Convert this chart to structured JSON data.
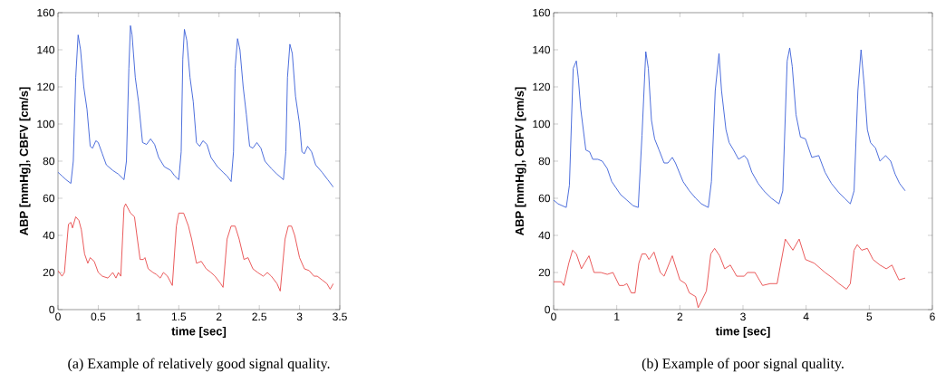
{
  "chart_data": [
    {
      "type": "line",
      "xlabel": "time [sec]",
      "ylabel": "ABP [mmHg], CBFV [cm/s]",
      "annotations": [
        "(a) Example of relatively good signal quality."
      ],
      "xlim": [
        0,
        3.5
      ],
      "ylim": [
        0,
        160
      ],
      "xticks": [
        0,
        0.5,
        1,
        1.5,
        2,
        2.5,
        3,
        3.5
      ],
      "yticks": [
        0,
        20,
        40,
        60,
        80,
        100,
        120,
        140,
        160
      ],
      "series": [
        {
          "color": "#3a5fd8",
          "x": [
            0,
            0.05,
            0.1,
            0.16,
            0.19,
            0.22,
            0.25,
            0.28,
            0.32,
            0.36,
            0.4,
            0.43,
            0.47,
            0.5,
            0.55,
            0.6,
            0.68,
            0.75,
            0.82,
            0.85,
            0.88,
            0.9,
            0.92,
            0.96,
            1.0,
            1.05,
            1.1,
            1.15,
            1.2,
            1.25,
            1.32,
            1.4,
            1.45,
            1.5,
            1.53,
            1.55,
            1.57,
            1.6,
            1.64,
            1.68,
            1.72,
            1.76,
            1.8,
            1.85,
            1.9,
            1.98,
            2.05,
            2.1,
            2.15,
            2.18,
            2.2,
            2.23,
            2.26,
            2.3,
            2.34,
            2.38,
            2.42,
            2.47,
            2.52,
            2.57,
            2.65,
            2.72,
            2.8,
            2.83,
            2.85,
            2.88,
            2.91,
            2.95,
            3.0,
            3.03,
            3.06,
            3.1,
            3.15,
            3.2,
            3.28,
            3.35,
            3.42
          ],
          "values": [
            74,
            72,
            70,
            68,
            80,
            125,
            148,
            140,
            120,
            108,
            88,
            87,
            91,
            90,
            84,
            78,
            75,
            73,
            70,
            80,
            130,
            153,
            148,
            125,
            112,
            90,
            89,
            92,
            89,
            82,
            77,
            75,
            72,
            70,
            85,
            135,
            151,
            145,
            125,
            112,
            90,
            88,
            91,
            89,
            82,
            77,
            74,
            72,
            69,
            85,
            130,
            146,
            140,
            120,
            105,
            88,
            87,
            90,
            87,
            80,
            76,
            73,
            70,
            85,
            125,
            143,
            138,
            115,
            100,
            85,
            84,
            88,
            85,
            78,
            74,
            70,
            66
          ]
        },
        {
          "color": "#e8484a",
          "x": [
            0,
            0.05,
            0.08,
            0.13,
            0.16,
            0.18,
            0.22,
            0.26,
            0.29,
            0.33,
            0.37,
            0.4,
            0.45,
            0.5,
            0.55,
            0.62,
            0.68,
            0.72,
            0.75,
            0.78,
            0.82,
            0.84,
            0.9,
            0.95,
            0.98,
            1.02,
            1.06,
            1.08,
            1.12,
            1.18,
            1.22,
            1.27,
            1.31,
            1.36,
            1.42,
            1.47,
            1.5,
            1.56,
            1.62,
            1.66,
            1.72,
            1.78,
            1.84,
            1.9,
            1.95,
            2.02,
            2.05,
            2.1,
            2.15,
            2.2,
            2.25,
            2.31,
            2.36,
            2.42,
            2.48,
            2.55,
            2.6,
            2.65,
            2.72,
            2.76,
            2.82,
            2.86,
            2.9,
            2.94,
            3.0,
            3.06,
            3.12,
            3.18,
            3.22,
            3.28,
            3.34,
            3.38,
            3.42
          ],
          "values": [
            21,
            18,
            20,
            46,
            47,
            44,
            50,
            48,
            43,
            30,
            25,
            28,
            26,
            20,
            18,
            17,
            20,
            17,
            20,
            18,
            55,
            57,
            52,
            50,
            40,
            27,
            27,
            28,
            22,
            20,
            19,
            17,
            20,
            18,
            13,
            45,
            52,
            52,
            45,
            38,
            25,
            26,
            22,
            20,
            18,
            14,
            12,
            38,
            45,
            45,
            38,
            27,
            28,
            22,
            20,
            18,
            20,
            18,
            14,
            10,
            38,
            45,
            45,
            40,
            28,
            22,
            21,
            18,
            18,
            16,
            14,
            11,
            14
          ]
        }
      ]
    },
    {
      "type": "line",
      "xlabel": "time [sec]",
      "ylabel": "ABP [mmHg], CBFV [cm/s]",
      "annotations": [
        "(b) Example of poor signal quality."
      ],
      "xlim": [
        0,
        6
      ],
      "ylim": [
        0,
        160
      ],
      "xticks": [
        0,
        1,
        2,
        3,
        4,
        5,
        6
      ],
      "yticks": [
        0,
        20,
        40,
        60,
        80,
        100,
        120,
        140,
        160
      ],
      "series": [
        {
          "color": "#3a5fd8",
          "x": [
            0,
            0.07,
            0.2,
            0.25,
            0.31,
            0.36,
            0.39,
            0.43,
            0.51,
            0.57,
            0.62,
            0.7,
            0.77,
            0.85,
            0.92,
            1.06,
            1.16,
            1.26,
            1.34,
            1.4,
            1.46,
            1.5,
            1.55,
            1.6,
            1.67,
            1.75,
            1.81,
            1.88,
            1.93,
            2.05,
            2.15,
            2.25,
            2.34,
            2.45,
            2.5,
            2.56,
            2.62,
            2.66,
            2.73,
            2.78,
            2.85,
            2.93,
            3.02,
            3.07,
            3.14,
            3.24,
            3.33,
            3.45,
            3.57,
            3.63,
            3.7,
            3.74,
            3.78,
            3.84,
            3.91,
            3.99,
            4.09,
            4.2,
            4.3,
            4.4,
            4.52,
            4.61,
            4.7,
            4.76,
            4.82,
            4.87,
            4.92,
            4.97,
            5.02,
            5.1,
            5.17,
            5.26,
            5.34,
            5.41,
            5.48,
            5.57
          ],
          "values": [
            59,
            57,
            55,
            67,
            130,
            134,
            125,
            108,
            86,
            85,
            81,
            81,
            80,
            76,
            69,
            62,
            59,
            56,
            55,
            94,
            139,
            130,
            102,
            92,
            86,
            79,
            79,
            82,
            79,
            69,
            64,
            60,
            57,
            55,
            69,
            118,
            138,
            118,
            97,
            90,
            86,
            81,
            83,
            81,
            74,
            68,
            64,
            60,
            57,
            64,
            134,
            141,
            131,
            105,
            93,
            92,
            82,
            83,
            74,
            68,
            63,
            60,
            57,
            64,
            118,
            140,
            121,
            97,
            90,
            87,
            80,
            83,
            80,
            73,
            68,
            64
          ]
        },
        {
          "color": "#e8484a",
          "x": [
            0,
            0.12,
            0.16,
            0.24,
            0.3,
            0.36,
            0.44,
            0.49,
            0.56,
            0.64,
            0.75,
            0.85,
            0.94,
            1.04,
            1.11,
            1.16,
            1.23,
            1.29,
            1.35,
            1.4,
            1.46,
            1.51,
            1.59,
            1.69,
            1.75,
            1.88,
            2.0,
            2.09,
            2.15,
            2.25,
            2.29,
            2.42,
            2.49,
            2.55,
            2.63,
            2.71,
            2.8,
            2.9,
            3.02,
            3.07,
            3.19,
            3.31,
            3.43,
            3.54,
            3.67,
            3.79,
            3.89,
            3.99,
            4.13,
            4.3,
            4.42,
            4.52,
            4.64,
            4.7,
            4.76,
            4.81,
            4.88,
            4.97,
            5.06,
            5.17,
            5.27,
            5.36,
            5.47,
            5.57
          ],
          "values": [
            15,
            15,
            13,
            25,
            32,
            30,
            22,
            25,
            29,
            20,
            20,
            19,
            20,
            13,
            13,
            14,
            9,
            9,
            25,
            30,
            30,
            27,
            31,
            20,
            18,
            29,
            16,
            14,
            9,
            7,
            1,
            10,
            30,
            33,
            29,
            22,
            24,
            18,
            18,
            20,
            20,
            13,
            14,
            14,
            38,
            32,
            38,
            27,
            25,
            20,
            17,
            14,
            11,
            14,
            32,
            35,
            32,
            33,
            27,
            24,
            22,
            24,
            16,
            17
          ]
        }
      ]
    }
  ]
}
